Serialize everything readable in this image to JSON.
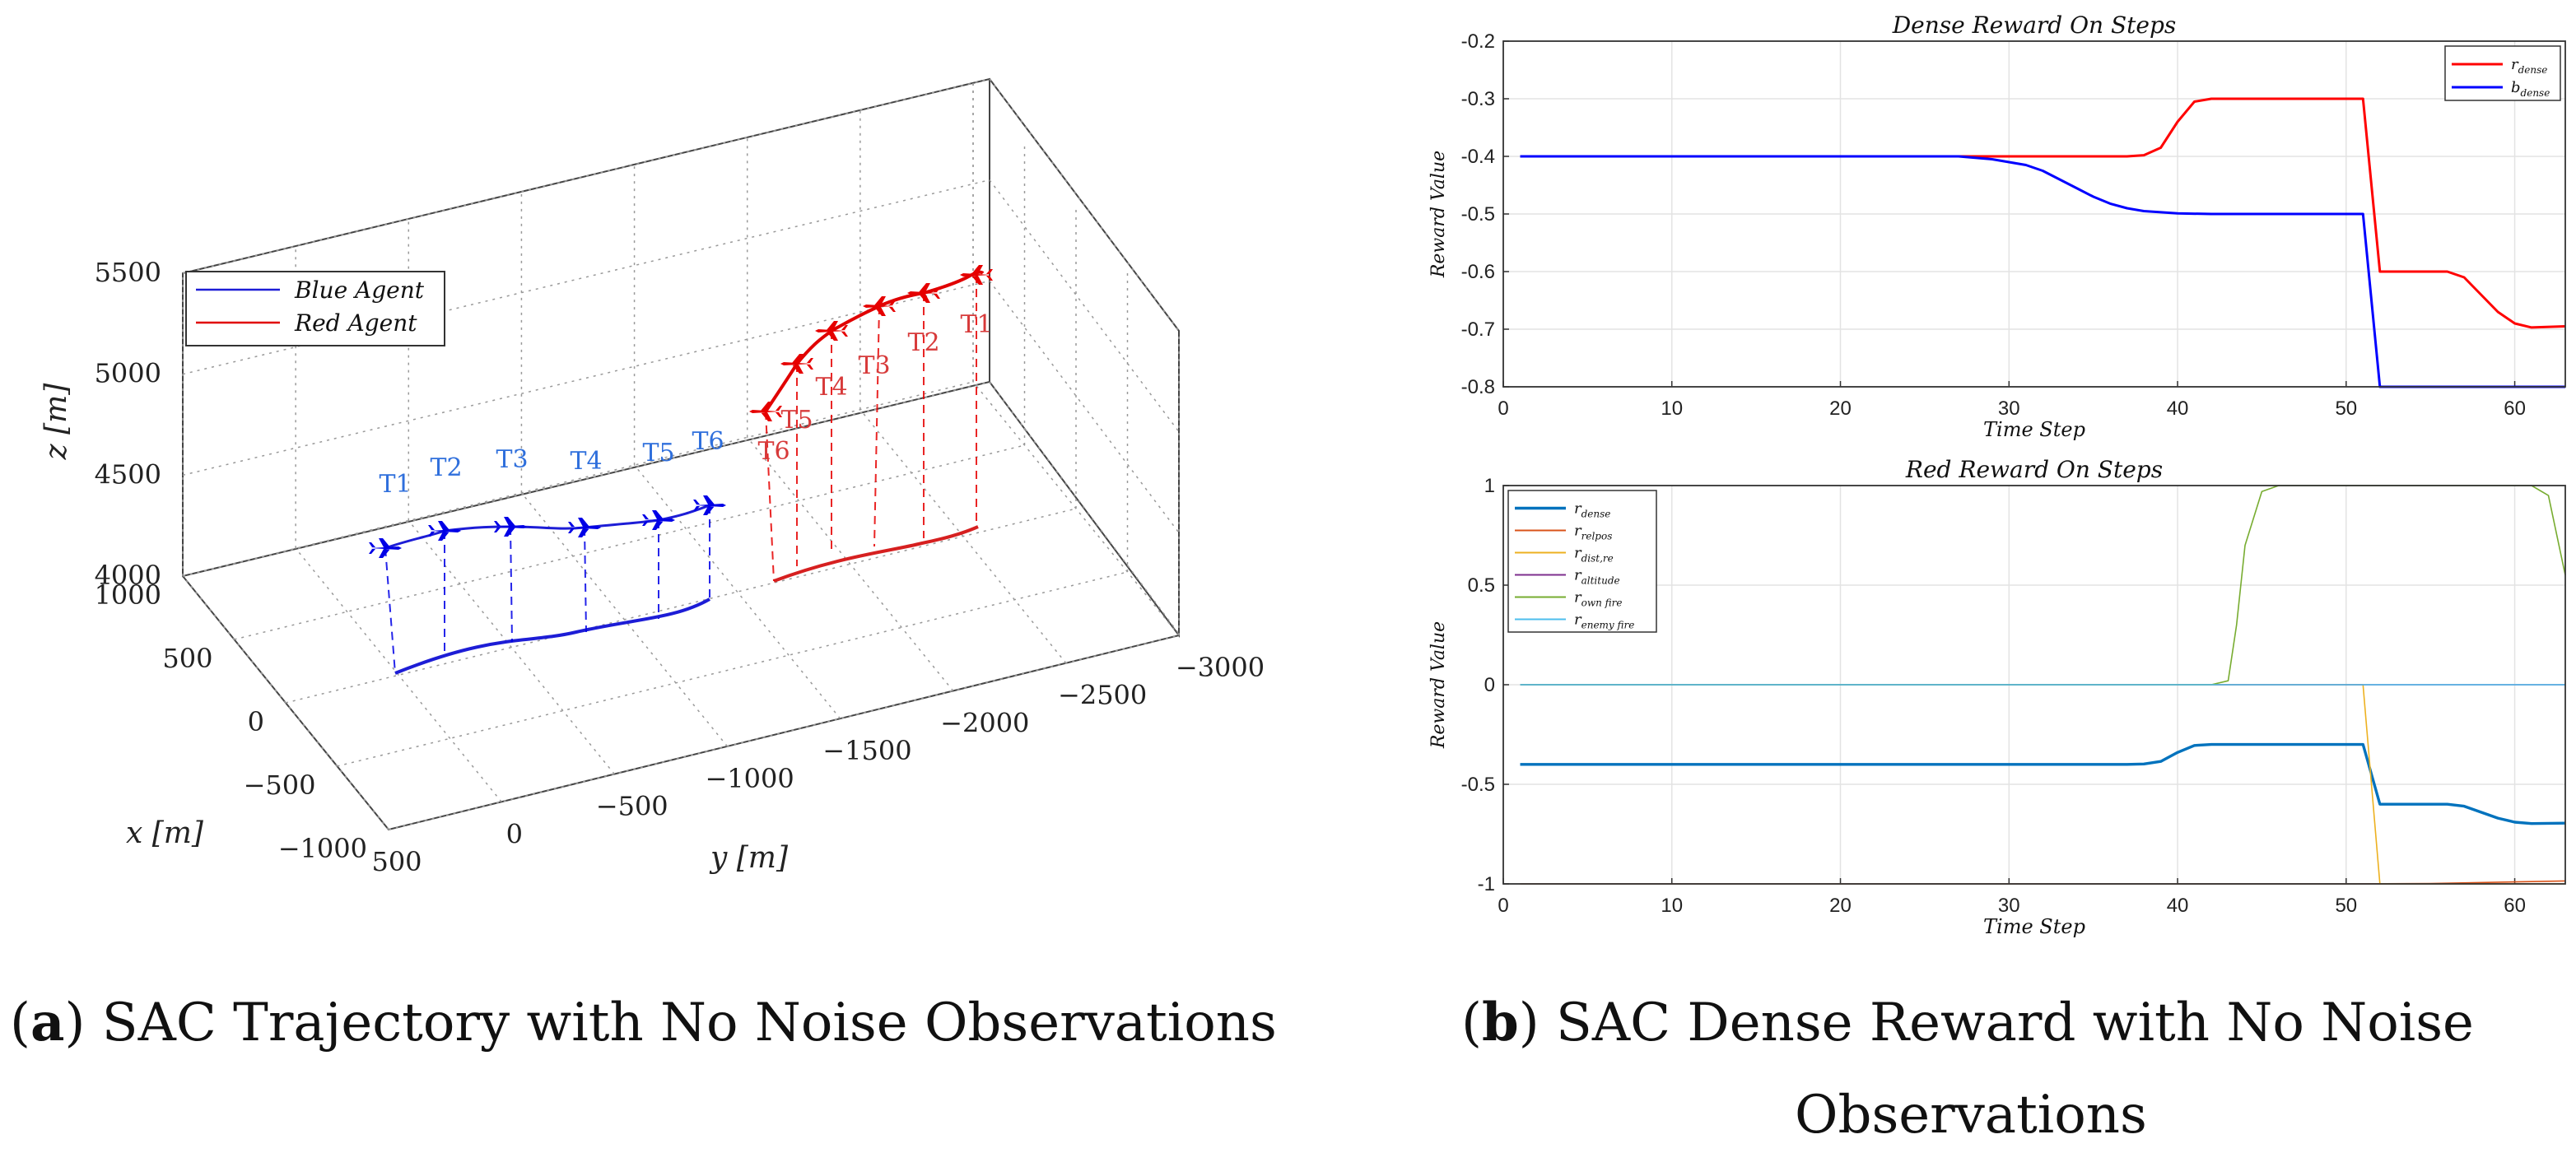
{
  "figure": {
    "caption_a": {
      "letter": "a",
      "text": "SAC Trajectory with No Noise Observations"
    },
    "caption_b": {
      "letter": "b",
      "text_line1": "SAC Dense Reward with No Noise",
      "text_line2": "Observations"
    }
  },
  "chart_data": [
    {
      "type": "line3d",
      "title": "",
      "xlabel": "x [m]",
      "ylabel": "y [m]",
      "zlabel": "z [m]",
      "x_ticks": [
        "1000",
        "500",
        "0",
        "−500",
        "−1000"
      ],
      "y_ticks": [
        "500",
        "0",
        "−500",
        "−1000",
        "−1500",
        "−2000",
        "−2500",
        "−3000"
      ],
      "z_ticks": [
        "4000",
        "4500",
        "5000",
        "5500"
      ],
      "xlim": [
        -1000,
        1000
      ],
      "ylim": [
        -3000,
        500
      ],
      "zlim": [
        4000,
        5500
      ],
      "grid": true,
      "legend_position": "top-left",
      "series": [
        {
          "name": "Blue Agent",
          "color": "#0000e6",
          "label_color": "#2f6fdc",
          "points": [
            {
              "label": "T1",
              "x": -20,
              "y": -140,
              "z": 4050
            },
            {
              "label": "T2",
              "x": -20,
              "y": -330,
              "z": 4150
            },
            {
              "label": "T3",
              "x": 30,
              "y": -550,
              "z": 4200
            },
            {
              "label": "T4",
              "x": 120,
              "y": -780,
              "z": 4200
            },
            {
              "label": "T5",
              "x": 200,
              "y": -990,
              "z": 4230
            },
            {
              "label": "T6",
              "x": 250,
              "y": -1180,
              "z": 4300
            }
          ]
        },
        {
          "name": "Red Agent",
          "color": "#e60000",
          "label_color": "#d73a3a",
          "points": [
            {
              "label": "T6",
              "x": 400,
              "y": -1380,
              "z": 4560
            },
            {
              "label": "T5",
              "x": 400,
              "y": -1520,
              "z": 4740
            },
            {
              "label": "T4",
              "x": 420,
              "y": -1720,
              "z": 4840
            },
            {
              "label": "T3",
              "x": 400,
              "y": -1920,
              "z": 4950
            },
            {
              "label": "T2",
              "x": 380,
              "y": -2170,
              "z": 4980
            },
            {
              "label": "T1",
              "x": 320,
              "y": -2420,
              "z": 5010
            }
          ]
        }
      ]
    },
    {
      "type": "line",
      "title": "Dense Reward On Steps",
      "xlabel": "Time Step",
      "ylabel": "Reward Value",
      "xlim": [
        0,
        63
      ],
      "ylim": [
        -0.8,
        -0.2
      ],
      "x_ticks": [
        0,
        10,
        20,
        30,
        40,
        50,
        60
      ],
      "y_ticks": [
        -0.2,
        -0.3,
        -0.4,
        -0.5,
        -0.6,
        -0.7,
        -0.8
      ],
      "grid": true,
      "legend_position": "top-right",
      "series": [
        {
          "name": "r_dense",
          "legend_base": "r",
          "legend_sub": "dense",
          "color": "#ff0000",
          "x": [
            1,
            36,
            37,
            38,
            39,
            40,
            41,
            42,
            44,
            50,
            51,
            52,
            55,
            56,
            57,
            58,
            59,
            60,
            61,
            63
          ],
          "y": [
            -0.4,
            -0.4,
            -0.4,
            -0.398,
            -0.385,
            -0.34,
            -0.305,
            -0.3,
            -0.3,
            -0.3,
            -0.3,
            -0.6,
            -0.6,
            -0.6,
            -0.61,
            -0.64,
            -0.67,
            -0.69,
            -0.697,
            -0.695
          ]
        },
        {
          "name": "b_dense",
          "legend_base": "b",
          "legend_sub": "dense",
          "color": "#0000ff",
          "x": [
            1,
            27,
            29,
            31,
            32,
            33,
            34,
            35,
            36,
            37,
            38,
            39,
            40,
            42,
            44,
            50,
            51,
            52,
            60,
            63
          ],
          "y": [
            -0.4,
            -0.4,
            -0.405,
            -0.415,
            -0.425,
            -0.44,
            -0.455,
            -0.47,
            -0.482,
            -0.49,
            -0.495,
            -0.497,
            -0.499,
            -0.5,
            -0.5,
            -0.5,
            -0.5,
            -0.8,
            -0.8,
            -0.8
          ]
        }
      ]
    },
    {
      "type": "line",
      "title": "Red Reward On Steps",
      "xlabel": "Time Step",
      "ylabel": "Reward Value",
      "xlim": [
        0,
        63
      ],
      "ylim": [
        -1,
        1
      ],
      "x_ticks": [
        0,
        10,
        20,
        30,
        40,
        50,
        60
      ],
      "y_ticks": [
        1,
        0.5,
        0,
        -0.5,
        -1
      ],
      "y_tick_labels": [
        "1",
        "0.5",
        "0",
        "-0.5",
        "-1"
      ],
      "grid": true,
      "legend_position": "top-left",
      "series": [
        {
          "name": "r_dense",
          "legend_base": "r",
          "legend_sub": "dense",
          "color": "#0072bd",
          "width": 3.4,
          "x": [
            1,
            36,
            37,
            38,
            39,
            40,
            41,
            42,
            44,
            50,
            51,
            52,
            55,
            56,
            57,
            58,
            59,
            60,
            61,
            63
          ],
          "y": [
            -0.4,
            -0.4,
            -0.4,
            -0.398,
            -0.385,
            -0.34,
            -0.305,
            -0.3,
            -0.3,
            -0.3,
            -0.3,
            -0.6,
            -0.6,
            -0.6,
            -0.61,
            -0.64,
            -0.67,
            -0.69,
            -0.697,
            -0.695
          ]
        },
        {
          "name": "r_relpos",
          "legend_base": "r",
          "legend_sub": "relpos",
          "color": "#d95319",
          "width": 1.6,
          "x": [
            1,
            30,
            50,
            55,
            60,
            63
          ],
          "y": [
            -1,
            -1,
            -1,
            -0.998,
            -0.99,
            -0.985
          ]
        },
        {
          "name": "r_dist,re",
          "legend_base": "r",
          "legend_sub": "dist,re",
          "color": "#edb120",
          "width": 1.6,
          "x": [
            1,
            50,
            51,
            52,
            63
          ],
          "y": [
            0,
            0,
            0,
            -1,
            -1
          ]
        },
        {
          "name": "r_altitude",
          "legend_base": "r",
          "legend_sub": "altitude",
          "color": "#7e2f8e",
          "width": 1.6,
          "x": [
            1,
            63
          ],
          "y": [
            0,
            0
          ]
        },
        {
          "name": "r_own fire",
          "legend_base": "r",
          "legend_sub": "own fire",
          "color": "#77ac30",
          "width": 1.6,
          "x": [
            1,
            42,
            43,
            43.5,
            44,
            45,
            46,
            50,
            55,
            60,
            61,
            62,
            63
          ],
          "y": [
            0,
            0,
            0.02,
            0.3,
            0.7,
            0.97,
            1,
            1,
            1,
            1,
            1,
            0.95,
            0.55
          ]
        },
        {
          "name": "r_enemy fire",
          "legend_base": "r",
          "legend_sub": "enemy fire",
          "color": "#4dbeee",
          "width": 1.6,
          "x": [
            1,
            63
          ],
          "y": [
            0,
            0
          ]
        }
      ]
    }
  ]
}
